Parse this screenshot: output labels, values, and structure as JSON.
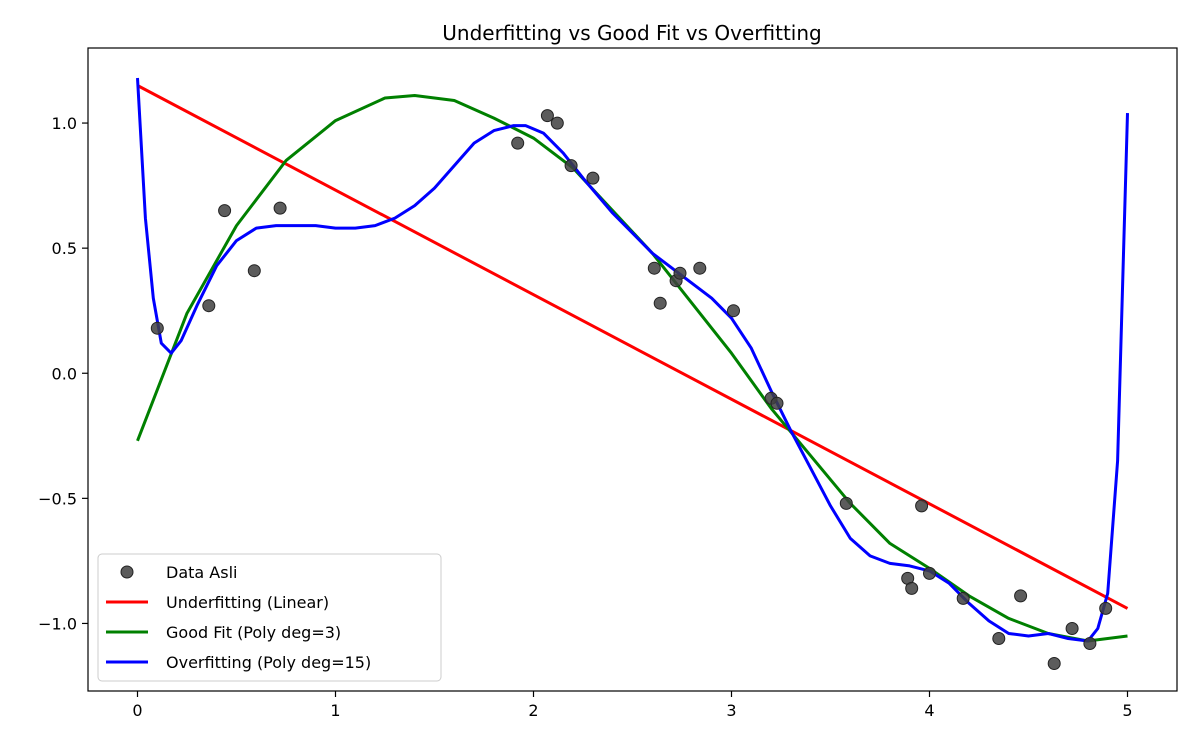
{
  "chart_data": {
    "type": "line",
    "title": "Underfitting vs Good Fit vs Overfitting",
    "xlabel": "",
    "ylabel": "",
    "xlim": [
      -0.25,
      5.25
    ],
    "ylim": [
      -1.27,
      1.3
    ],
    "x_ticks": [
      0,
      1,
      2,
      3,
      4,
      5
    ],
    "x_tick_labels": [
      "0",
      "1",
      "2",
      "3",
      "4",
      "5"
    ],
    "y_ticks": [
      -1.0,
      -0.5,
      0.0,
      0.5,
      1.0
    ],
    "y_tick_labels": [
      "−1.0",
      "−0.5",
      "0.0",
      "0.5",
      "1.0"
    ],
    "grid": false,
    "legend_position": "lower-left",
    "scatter": {
      "name": "Data Asli",
      "color": "#404040",
      "points": [
        [
          0.1,
          0.18
        ],
        [
          0.36,
          0.27
        ],
        [
          0.44,
          0.65
        ],
        [
          0.59,
          0.41
        ],
        [
          0.72,
          0.66
        ],
        [
          1.92,
          0.92
        ],
        [
          2.07,
          1.03
        ],
        [
          2.12,
          1.0
        ],
        [
          2.19,
          0.83
        ],
        [
          2.3,
          0.78
        ],
        [
          2.61,
          0.42
        ],
        [
          2.64,
          0.28
        ],
        [
          2.72,
          0.37
        ],
        [
          2.74,
          0.4
        ],
        [
          2.84,
          0.42
        ],
        [
          3.01,
          0.25
        ],
        [
          3.2,
          -0.1
        ],
        [
          3.23,
          -0.12
        ],
        [
          3.58,
          -0.52
        ],
        [
          3.89,
          -0.82
        ],
        [
          3.91,
          -0.86
        ],
        [
          3.96,
          -0.53
        ],
        [
          4.0,
          -0.8
        ],
        [
          4.17,
          -0.9
        ],
        [
          4.35,
          -1.06
        ],
        [
          4.46,
          -0.89
        ],
        [
          4.63,
          -1.16
        ],
        [
          4.72,
          -1.02
        ],
        [
          4.81,
          -1.08
        ],
        [
          4.89,
          -0.94
        ]
      ]
    },
    "series": [
      {
        "name": "Underfitting (Linear)",
        "color": "#ff0000",
        "x": [
          0,
          5
        ],
        "y": [
          1.15,
          -0.94
        ]
      },
      {
        "name": "Good Fit (Poly deg=3)",
        "color": "#008000",
        "x": [
          0,
          0.25,
          0.5,
          0.75,
          1.0,
          1.25,
          1.4,
          1.6,
          1.8,
          2.0,
          2.2,
          2.4,
          2.6,
          2.8,
          3.0,
          3.2,
          3.4,
          3.6,
          3.8,
          4.0,
          4.2,
          4.4,
          4.6,
          4.8,
          5.0
        ],
        "y": [
          -0.27,
          0.24,
          0.59,
          0.85,
          1.01,
          1.1,
          1.11,
          1.09,
          1.02,
          0.94,
          0.82,
          0.65,
          0.48,
          0.28,
          0.08,
          -0.14,
          -0.33,
          -0.52,
          -0.68,
          -0.78,
          -0.89,
          -0.98,
          -1.04,
          -1.07,
          -1.05
        ]
      },
      {
        "name": "Overfitting (Poly deg=15)",
        "color": "#0000ff",
        "x": [
          0,
          0.04,
          0.08,
          0.12,
          0.17,
          0.22,
          0.3,
          0.4,
          0.5,
          0.6,
          0.7,
          0.8,
          0.9,
          1.0,
          1.1,
          1.2,
          1.3,
          1.4,
          1.5,
          1.6,
          1.7,
          1.8,
          1.9,
          1.96,
          2.05,
          2.15,
          2.25,
          2.4,
          2.5,
          2.6,
          2.7,
          2.8,
          2.9,
          3.0,
          3.1,
          3.2,
          3.3,
          3.4,
          3.5,
          3.6,
          3.7,
          3.8,
          3.9,
          4.0,
          4.1,
          4.2,
          4.3,
          4.4,
          4.5,
          4.6,
          4.7,
          4.8,
          4.85,
          4.9,
          4.95,
          5.0
        ],
        "y": [
          1.18,
          0.62,
          0.3,
          0.12,
          0.08,
          0.13,
          0.27,
          0.43,
          0.53,
          0.58,
          0.59,
          0.59,
          0.59,
          0.58,
          0.58,
          0.59,
          0.62,
          0.67,
          0.74,
          0.83,
          0.92,
          0.97,
          0.99,
          0.99,
          0.96,
          0.88,
          0.78,
          0.64,
          0.56,
          0.48,
          0.42,
          0.36,
          0.3,
          0.22,
          0.1,
          -0.07,
          -0.23,
          -0.38,
          -0.53,
          -0.66,
          -0.73,
          -0.76,
          -0.77,
          -0.79,
          -0.84,
          -0.92,
          -0.99,
          -1.04,
          -1.05,
          -1.04,
          -1.06,
          -1.07,
          -1.02,
          -0.88,
          -0.35,
          1.04
        ]
      }
    ]
  }
}
